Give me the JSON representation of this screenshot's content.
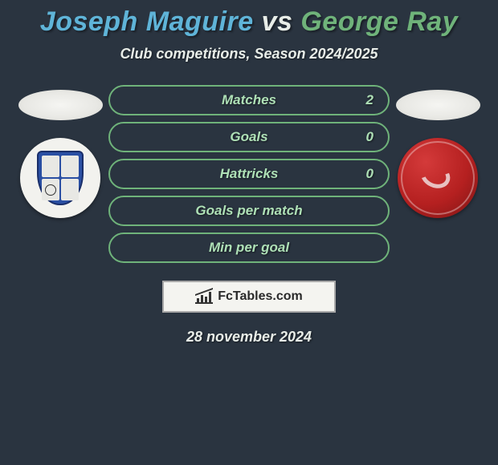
{
  "title": {
    "player1": "Joseph Maguire",
    "connector": "vs",
    "player2": "George Ray"
  },
  "subtitle": "Club competitions, Season 2024/2025",
  "player1_color": "#5fb4d8",
  "player2_color": "#6fb37a",
  "bar_border_color": "#6fb37a",
  "bar_text_color": "#aee0b6",
  "background_color": "#2a3440",
  "stats": [
    {
      "label": "Matches",
      "value_right": "2"
    },
    {
      "label": "Goals",
      "value_right": "0"
    },
    {
      "label": "Hattricks",
      "value_right": "0"
    },
    {
      "label": "Goals per match",
      "value_right": ""
    },
    {
      "label": "Min per goal",
      "value_right": ""
    }
  ],
  "brand": "FcTables.com",
  "date": "28 november 2024",
  "badges": {
    "left_name": "tranmere-rovers-badge",
    "right_name": "morecambe-badge"
  }
}
